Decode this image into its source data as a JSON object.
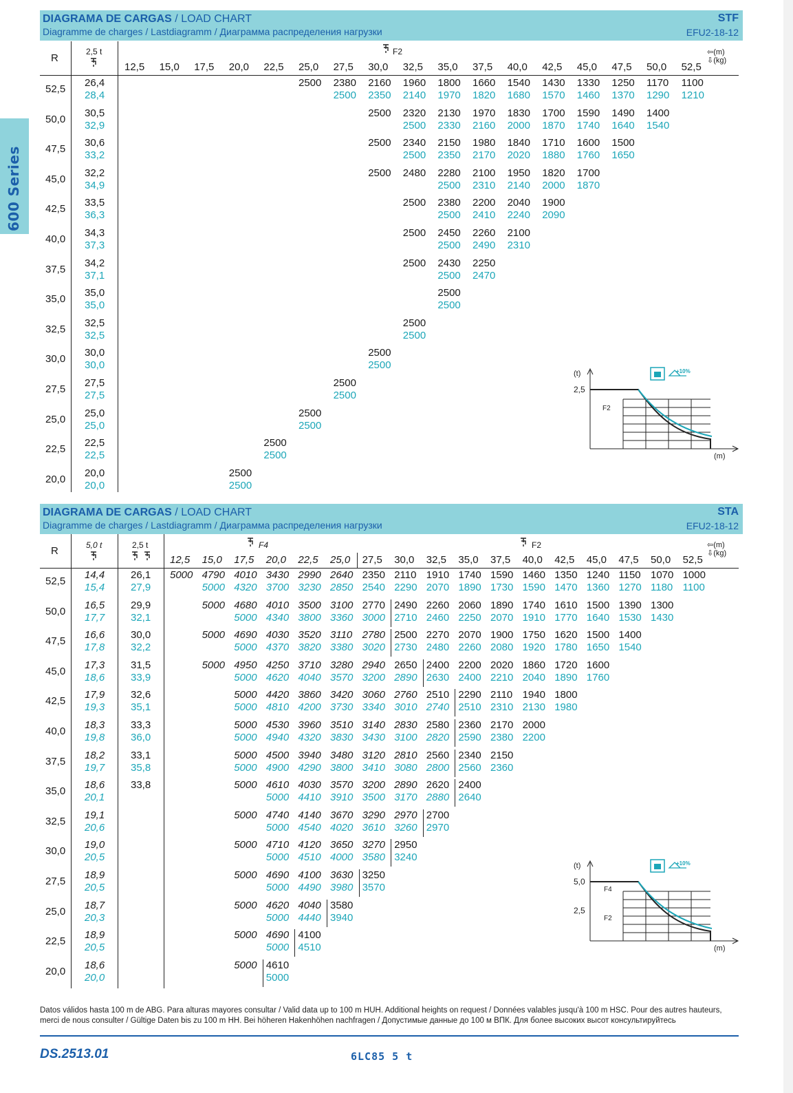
{
  "side_tab": "600 Series",
  "stf": {
    "title_bold": "DIAGRAMA DE CARGAS",
    "title_rest": " / LOAD CHART",
    "subtitle": "Diagramme de charges  /  Lastdiagramm  /  Диаграмма распределения нагрузки",
    "code": "STF",
    "model": "EFU2-18-12",
    "r_label": "R",
    "cap_label": "2,5 t",
    "f_label": "F2",
    "units": "⇦(m)\n⇩(kg)",
    "jibs": [
      "12,5",
      "15,0",
      "17,5",
      "20,0",
      "22,5",
      "25,0",
      "27,5",
      "30,0",
      "32,5",
      "35,0",
      "37,5",
      "40,0",
      "42,5",
      "45,0",
      "47,5",
      "50,0",
      "52,5"
    ],
    "rows": [
      {
        "r": "52,5",
        "a": "26,4",
        "b": "28,4",
        "start": 5,
        "top": [
          "2500",
          "2380",
          "2160",
          "1960",
          "1800",
          "1660",
          "1540",
          "1430",
          "1330",
          "1250",
          "1170",
          "1100"
        ],
        "bot": [
          "",
          "2500",
          "2350",
          "2140",
          "1970",
          "1820",
          "1680",
          "1570",
          "1460",
          "1370",
          "1290",
          "1210"
        ]
      },
      {
        "r": "50,0",
        "a": "30,5",
        "b": "32,9",
        "start": 7,
        "top": [
          "2500",
          "2320",
          "2130",
          "1970",
          "1830",
          "1700",
          "1590",
          "1490",
          "1400"
        ],
        "bot": [
          "",
          "2500",
          "2330",
          "2160",
          "2000",
          "1870",
          "1740",
          "1640",
          "1540"
        ]
      },
      {
        "r": "47,5",
        "a": "30,6",
        "b": "33,2",
        "start": 7,
        "top": [
          "2500",
          "2340",
          "2150",
          "1980",
          "1840",
          "1710",
          "1600",
          "1500"
        ],
        "bot": [
          "",
          "2500",
          "2350",
          "2170",
          "2020",
          "1880",
          "1760",
          "1650"
        ]
      },
      {
        "r": "45,0",
        "a": "32,2",
        "b": "34,9",
        "start": 7,
        "top": [
          "2500",
          "2480",
          "2280",
          "2100",
          "1950",
          "1820",
          "1700"
        ],
        "bot": [
          "",
          "",
          "2500",
          "2310",
          "2140",
          "2000",
          "1870"
        ]
      },
      {
        "r": "42,5",
        "a": "33,5",
        "b": "36,3",
        "start": 8,
        "top": [
          "2500",
          "2380",
          "2200",
          "2040",
          "1900"
        ],
        "bot": [
          "",
          "2500",
          "2410",
          "2240",
          "2090"
        ]
      },
      {
        "r": "40,0",
        "a": "34,3",
        "b": "37,3",
        "start": 8,
        "top": [
          "2500",
          "2450",
          "2260",
          "2100"
        ],
        "bot": [
          "",
          "2500",
          "2490",
          "2310"
        ]
      },
      {
        "r": "37,5",
        "a": "34,2",
        "b": "37,1",
        "start": 8,
        "top": [
          "2500",
          "2430",
          "2250"
        ],
        "bot": [
          "",
          "2500",
          "2470"
        ]
      },
      {
        "r": "35,0",
        "a": "35,0",
        "b": "35,0",
        "start": 9,
        "top": [
          "2500"
        ],
        "bot": [
          "2500"
        ]
      },
      {
        "r": "32,5",
        "a": "32,5",
        "b": "32,5",
        "start": 8,
        "top": [
          "2500"
        ],
        "bot": [
          "2500"
        ]
      },
      {
        "r": "30,0",
        "a": "30,0",
        "b": "30,0",
        "start": 7,
        "top": [
          "2500"
        ],
        "bot": [
          "2500"
        ]
      },
      {
        "r": "27,5",
        "a": "27,5",
        "b": "27,5",
        "start": 6,
        "top": [
          "2500"
        ],
        "bot": [
          "2500"
        ]
      },
      {
        "r": "25,0",
        "a": "25,0",
        "b": "25,0",
        "start": 5,
        "top": [
          "2500"
        ],
        "bot": [
          "2500"
        ]
      },
      {
        "r": "22,5",
        "a": "22,5",
        "b": "22,5",
        "start": 4,
        "top": [
          "2500"
        ],
        "bot": [
          "2500"
        ]
      },
      {
        "r": "20,0",
        "a": "20,0",
        "b": "20,0",
        "start": 3,
        "top": [
          "2500"
        ],
        "bot": [
          "2500"
        ]
      }
    ],
    "diagram": {
      "t_label": "(t)",
      "m_label": "(m)",
      "y_tick": "2,5",
      "f_label": "F2",
      "plus": "+10%"
    }
  },
  "sta": {
    "title_bold": "DIAGRAMA DE CARGAS",
    "title_rest": " / LOAD CHART",
    "subtitle": "Diagramme de charges  /  Lastdiagramm  /  Диаграмма распределения нагрузки",
    "code": "STA",
    "model": "EFU2-18-12",
    "r_label": "R",
    "cap1_label": "5,0 t",
    "cap2_label": "2,5 t",
    "f4_label": "F4",
    "f2_label": "F2",
    "units": "⇦(m)\n⇩(kg)",
    "jibs": [
      "12,5",
      "15,0",
      "17,5",
      "20,0",
      "22,5",
      "25,0",
      "27,5",
      "30,0",
      "32,5",
      "35,0",
      "37,5",
      "40,0",
      "42,5",
      "45,0",
      "47,5",
      "50,0",
      "52,5"
    ],
    "rows": [
      {
        "r": "52,5",
        "a": "14,4",
        "b": "15,4",
        "c": "26,1",
        "d": "27,9",
        "start": 0,
        "top": [
          "5000",
          "4790",
          "4010",
          "3430",
          "2990",
          "2640",
          "2350",
          "2110",
          "1910",
          "1740",
          "1590",
          "1460",
          "1350",
          "1240",
          "1150",
          "1070",
          "1000"
        ],
        "bot": [
          "",
          "5000",
          "4320",
          "3700",
          "3230",
          "2850",
          "2540",
          "2290",
          "2070",
          "1890",
          "1730",
          "1590",
          "1470",
          "1360",
          "1270",
          "1180",
          "1100"
        ],
        "ib": 6
      },
      {
        "r": "50,0",
        "a": "16,5",
        "b": "17,7",
        "c": "29,9",
        "d": "32,1",
        "start": 1,
        "top": [
          "5000",
          "4680",
          "4010",
          "3500",
          "3100",
          "2770",
          "2490",
          "2260",
          "2060",
          "1890",
          "1740",
          "1610",
          "1500",
          "1390",
          "1300"
        ],
        "bot": [
          "",
          "5000",
          "4340",
          "3800",
          "3360",
          "3000",
          "2710",
          "2460",
          "2250",
          "2070",
          "1910",
          "1770",
          "1640",
          "1530",
          "1430"
        ],
        "it": 6,
        "ib": 7
      },
      {
        "r": "47,5",
        "a": "16,6",
        "b": "17,8",
        "c": "30,0",
        "d": "32,2",
        "start": 1,
        "top": [
          "5000",
          "4690",
          "4030",
          "3520",
          "3110",
          "2780",
          "2500",
          "2270",
          "2070",
          "1900",
          "1750",
          "1620",
          "1500",
          "1400"
        ],
        "bot": [
          "",
          "5000",
          "4370",
          "3820",
          "3380",
          "3020",
          "2730",
          "2480",
          "2260",
          "2080",
          "1920",
          "1780",
          "1650",
          "1540"
        ],
        "it": 7,
        "ib": 7
      },
      {
        "r": "45,0",
        "a": "17,3",
        "b": "18,6",
        "c": "31,5",
        "d": "33,9",
        "start": 1,
        "top": [
          "5000",
          "4950",
          "4250",
          "3710",
          "3280",
          "2940",
          "2650",
          "2400",
          "2200",
          "2020",
          "1860",
          "1720",
          "1600"
        ],
        "bot": [
          "",
          "5000",
          "4620",
          "4040",
          "3570",
          "3200",
          "2890",
          "2630",
          "2400",
          "2210",
          "2040",
          "1890",
          "1760"
        ],
        "it": 7,
        "ib": 8
      },
      {
        "r": "42,5",
        "a": "17,9",
        "b": "19,3",
        "c": "32,6",
        "d": "35,1",
        "start": 2,
        "top": [
          "5000",
          "4420",
          "3860",
          "3420",
          "3060",
          "2760",
          "2510",
          "2290",
          "2110",
          "1940",
          "1800"
        ],
        "bot": [
          "5000",
          "4810",
          "4200",
          "3730",
          "3340",
          "3010",
          "2740",
          "2510",
          "2310",
          "2130",
          "1980"
        ],
        "it": 8,
        "ib": 9
      },
      {
        "r": "40,0",
        "a": "18,3",
        "b": "19,8",
        "c": "33,3",
        "d": "36,0",
        "start": 2,
        "top": [
          "5000",
          "4530",
          "3960",
          "3510",
          "3140",
          "2830",
          "2580",
          "2360",
          "2170",
          "2000"
        ],
        "bot": [
          "5000",
          "4940",
          "4320",
          "3830",
          "3430",
          "3100",
          "2820",
          "2590",
          "2380",
          "2200"
        ],
        "it": 8,
        "ib": 9
      },
      {
        "r": "37,5",
        "a": "18,2",
        "b": "19,7",
        "c": "33,1",
        "d": "35,8",
        "start": 2,
        "top": [
          "5000",
          "4500",
          "3940",
          "3480",
          "3120",
          "2810",
          "2560",
          "2340",
          "2150"
        ],
        "bot": [
          "5000",
          "4900",
          "4290",
          "3800",
          "3410",
          "3080",
          "2800",
          "2560",
          "2360"
        ],
        "it": 8,
        "ib": 9
      },
      {
        "r": "35,0",
        "a": "18,6",
        "b": "20,1",
        "c": "33,8",
        "d": "",
        "start": 2,
        "top": [
          "5000",
          "4610",
          "4030",
          "3570",
          "3200",
          "2890",
          "2620",
          "2400"
        ],
        "bot": [
          "",
          "5000",
          "4410",
          "3910",
          "3500",
          "3170",
          "2880",
          "2640"
        ],
        "it": 8,
        "ib": 9
      },
      {
        "r": "32,5",
        "a": "19,1",
        "b": "20,6",
        "c": "",
        "d": "",
        "start": 2,
        "top": [
          "5000",
          "4740",
          "4140",
          "3670",
          "3290",
          "2970",
          "2700"
        ],
        "bot": [
          "",
          "5000",
          "4540",
          "4020",
          "3610",
          "3260",
          "2970"
        ],
        "it": 8,
        "ib": 8
      },
      {
        "r": "30,0",
        "a": "19,0",
        "b": "20,5",
        "c": "",
        "d": "",
        "start": 2,
        "top": [
          "5000",
          "4710",
          "4120",
          "3650",
          "3270",
          "2950"
        ],
        "bot": [
          "",
          "5000",
          "4510",
          "4000",
          "3580",
          "3240"
        ],
        "it": 7,
        "ib": 7
      },
      {
        "r": "27,5",
        "a": "18,9",
        "b": "20,5",
        "c": "",
        "d": "",
        "start": 2,
        "top": [
          "5000",
          "4690",
          "4100",
          "3630",
          "3250"
        ],
        "bot": [
          "",
          "5000",
          "4490",
          "3980",
          "3570"
        ],
        "it": 6,
        "ib": 6
      },
      {
        "r": "25,0",
        "a": "18,7",
        "b": "20,3",
        "c": "",
        "d": "",
        "start": 2,
        "top": [
          "5000",
          "4620",
          "4040",
          "3580"
        ],
        "bot": [
          "",
          "5000",
          "4440",
          "3940"
        ],
        "it": 5,
        "ib": 5
      },
      {
        "r": "22,5",
        "a": "18,9",
        "b": "20,5",
        "c": "",
        "d": "",
        "start": 2,
        "top": [
          "5000",
          "4690",
          "4100"
        ],
        "bot": [
          "",
          "5000",
          "4510"
        ],
        "it": 4,
        "ib": 4
      },
      {
        "r": "20,0",
        "a": "18,6",
        "b": "20,0",
        "c": "",
        "d": "",
        "start": 2,
        "top": [
          "5000",
          "4610"
        ],
        "bot": [
          "",
          "5000"
        ],
        "it": 3,
        "ib": 3
      }
    ],
    "diagram": {
      "t_label": "(t)",
      "m_label": "(m)",
      "y_tick1": "5,0",
      "y_tick2": "2,5",
      "f4_label": "F4",
      "f2_label": "F2",
      "plus": "+10%"
    }
  },
  "footer": {
    "note": "Datos válidos hasta 100 m de ABG. Para alturas mayores consultar  /  Valid data up to 100 m HUH. Additional heights on request  /  Données valables jusqu'à 100 m HSC. Pour des autres hauteurs, merci de nous consulter / Gültige Daten bis zu 100 m HH. Bei höheren Hakenhöhen nachfragen / Допустимые данные до 100 м ВПК. Для более высоких высот консультируйтесь",
    "doc_code": "DS.2513.01",
    "model": "6LC85  5 t"
  }
}
